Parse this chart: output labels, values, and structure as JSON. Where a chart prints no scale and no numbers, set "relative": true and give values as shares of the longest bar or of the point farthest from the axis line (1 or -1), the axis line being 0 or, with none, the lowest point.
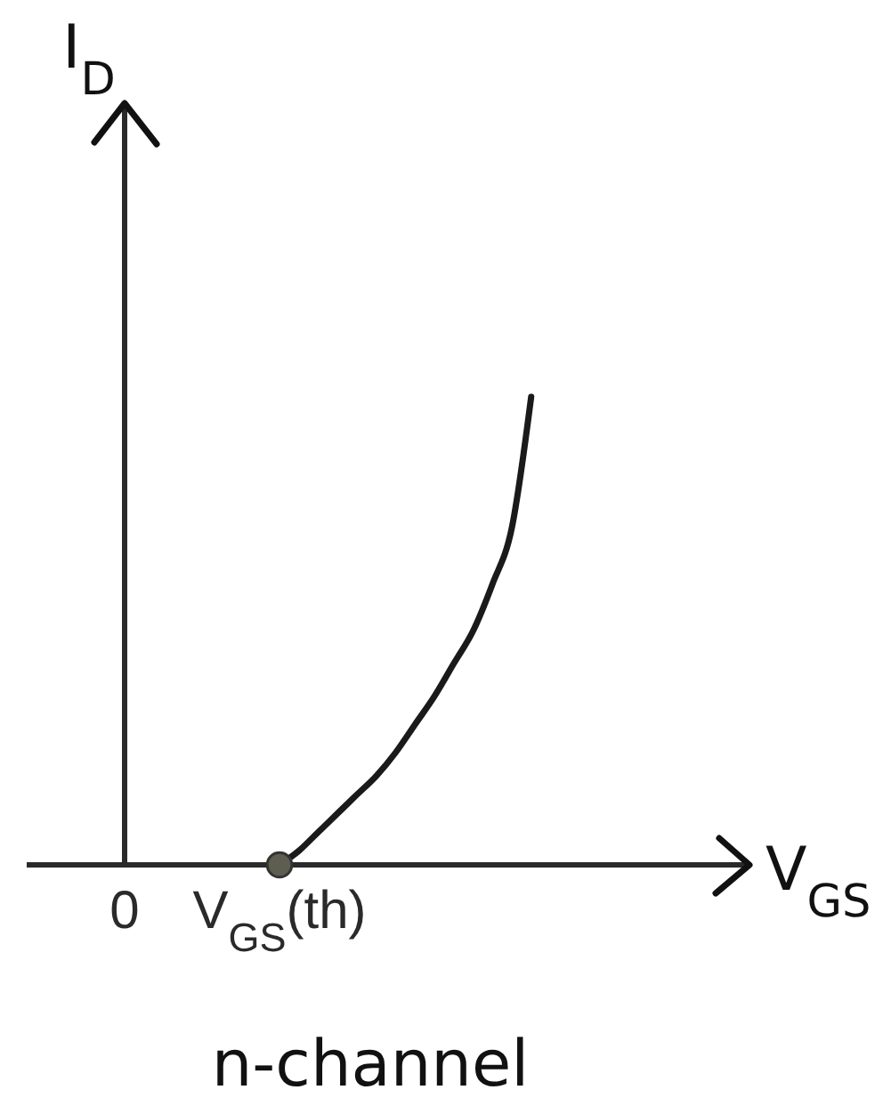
{
  "chart_data": {
    "type": "line",
    "xlabel": "V$_{GS}$",
    "ylabel": "I$_{D}$",
    "relative": true,
    "categories": [
      "0",
      null,
      null,
      null,
      null,
      null,
      null,
      null,
      "V$_{GS}$(th)",
      null,
      null,
      null,
      null,
      null,
      null,
      null,
      null,
      null,
      null,
      null,
      null,
      null
    ],
    "series": [
      {
        "color": "#1a1a1a",
        "values": [
          null,
          null,
          null,
          null,
          null,
          null,
          null,
          null,
          0,
          0.03,
          0.07,
          0.11,
          0.15,
          0.19,
          0.24,
          0.3,
          0.36,
          0.43,
          0.5,
          0.6,
          0.72,
          1.0
        ],
        "marker": "none"
      },
      {
        "type": "scatter",
        "color": "#5e5e50",
        "values": [
          null,
          null,
          null,
          null,
          null,
          null,
          null,
          null,
          0,
          null,
          null,
          null,
          null,
          null,
          null,
          null,
          null,
          null,
          null,
          null,
          null,
          null
        ],
        "marker": "circle"
      }
    ],
    "annotations": [
      "n-channel"
    ]
  }
}
